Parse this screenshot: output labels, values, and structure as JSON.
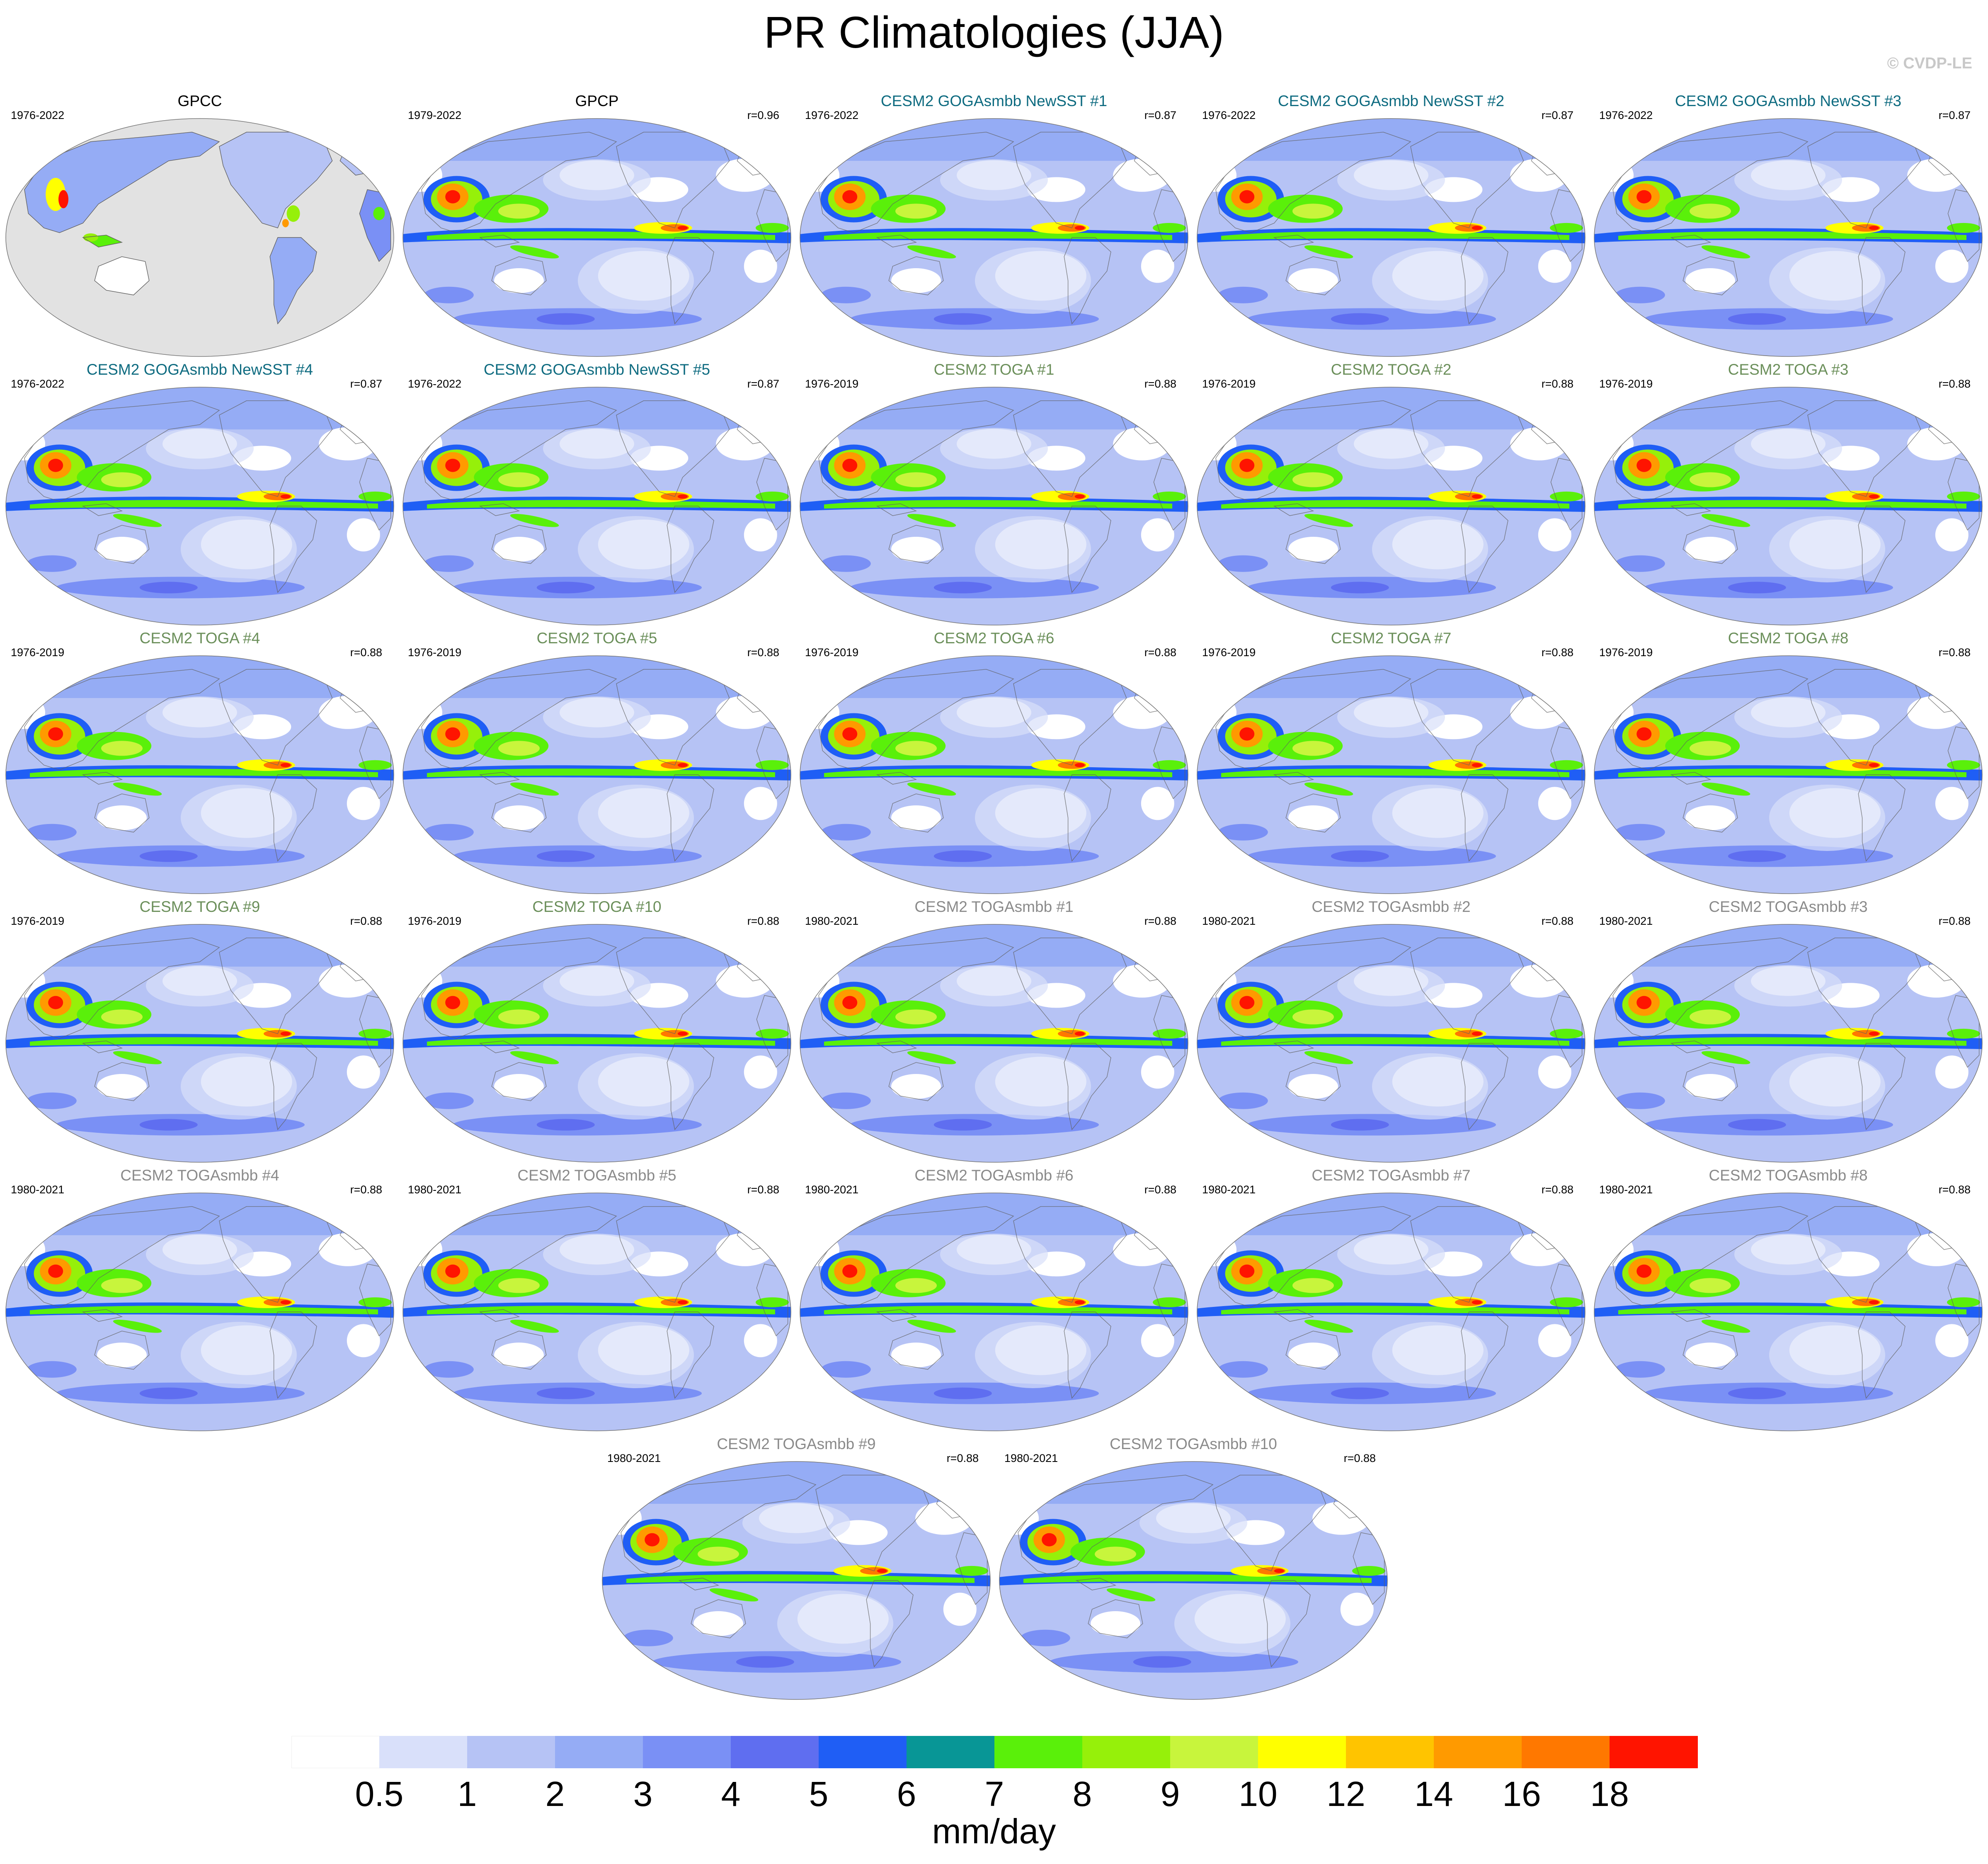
{
  "title": "PR Climatologies (JJA)",
  "watermark": "© CVDP-LE",
  "colors": {
    "obs_title": "#000000",
    "goga_title": "#0e6b80",
    "toga_title": "#6b8f5a",
    "togasmbb_title": "#8a8a8a",
    "land_gray": "#e2e2e2",
    "coast": "#606060"
  },
  "panels": [
    {
      "title": "GPCC",
      "period": "1976-2022",
      "r": "",
      "group": "obs",
      "kind": "land"
    },
    {
      "title": "GPCP",
      "period": "1979-2022",
      "r": "r=0.96",
      "group": "obs",
      "kind": "ocean"
    },
    {
      "title": "CESM2 GOGAsmbb NewSST #1",
      "period": "1976-2022",
      "r": "r=0.87",
      "group": "goga",
      "kind": "model"
    },
    {
      "title": "CESM2 GOGAsmbb NewSST #2",
      "period": "1976-2022",
      "r": "r=0.87",
      "group": "goga",
      "kind": "model"
    },
    {
      "title": "CESM2 GOGAsmbb NewSST #3",
      "period": "1976-2022",
      "r": "r=0.87",
      "group": "goga",
      "kind": "model"
    },
    {
      "title": "CESM2 GOGAsmbb NewSST #4",
      "period": "1976-2022",
      "r": "r=0.87",
      "group": "goga",
      "kind": "model"
    },
    {
      "title": "CESM2 GOGAsmbb NewSST #5",
      "period": "1976-2022",
      "r": "r=0.87",
      "group": "goga",
      "kind": "model"
    },
    {
      "title": "CESM2 TOGA #1",
      "period": "1976-2019",
      "r": "r=0.88",
      "group": "toga",
      "kind": "model"
    },
    {
      "title": "CESM2 TOGA #2",
      "period": "1976-2019",
      "r": "r=0.88",
      "group": "toga",
      "kind": "model"
    },
    {
      "title": "CESM2 TOGA #3",
      "period": "1976-2019",
      "r": "r=0.88",
      "group": "toga",
      "kind": "model"
    },
    {
      "title": "CESM2 TOGA #4",
      "period": "1976-2019",
      "r": "r=0.88",
      "group": "toga",
      "kind": "model"
    },
    {
      "title": "CESM2 TOGA #5",
      "period": "1976-2019",
      "r": "r=0.88",
      "group": "toga",
      "kind": "model"
    },
    {
      "title": "CESM2 TOGA #6",
      "period": "1976-2019",
      "r": "r=0.88",
      "group": "toga",
      "kind": "model"
    },
    {
      "title": "CESM2 TOGA #7",
      "period": "1976-2019",
      "r": "r=0.88",
      "group": "toga",
      "kind": "model"
    },
    {
      "title": "CESM2 TOGA #8",
      "period": "1976-2019",
      "r": "r=0.88",
      "group": "toga",
      "kind": "model"
    },
    {
      "title": "CESM2 TOGA #9",
      "period": "1976-2019",
      "r": "r=0.88",
      "group": "toga",
      "kind": "model"
    },
    {
      "title": "CESM2 TOGA #10",
      "period": "1976-2019",
      "r": "r=0.88",
      "group": "toga",
      "kind": "model"
    },
    {
      "title": "CESM2 TOGAsmbb #1",
      "period": "1980-2021",
      "r": "r=0.88",
      "group": "togasmbb",
      "kind": "model"
    },
    {
      "title": "CESM2 TOGAsmbb #2",
      "period": "1980-2021",
      "r": "r=0.88",
      "group": "togasmbb",
      "kind": "model"
    },
    {
      "title": "CESM2 TOGAsmbb #3",
      "period": "1980-2021",
      "r": "r=0.88",
      "group": "togasmbb",
      "kind": "model"
    },
    {
      "title": "CESM2 TOGAsmbb #4",
      "period": "1980-2021",
      "r": "r=0.88",
      "group": "togasmbb",
      "kind": "model"
    },
    {
      "title": "CESM2 TOGAsmbb #5",
      "period": "1980-2021",
      "r": "r=0.88",
      "group": "togasmbb",
      "kind": "model"
    },
    {
      "title": "CESM2 TOGAsmbb #6",
      "period": "1980-2021",
      "r": "r=0.88",
      "group": "togasmbb",
      "kind": "model"
    },
    {
      "title": "CESM2 TOGAsmbb #7",
      "period": "1980-2021",
      "r": "r=0.88",
      "group": "togasmbb",
      "kind": "model"
    },
    {
      "title": "CESM2 TOGAsmbb #8",
      "period": "1980-2021",
      "r": "r=0.88",
      "group": "togasmbb",
      "kind": "model"
    },
    {
      "title": "CESM2 TOGAsmbb #9",
      "period": "1980-2021",
      "r": "r=0.88",
      "group": "togasmbb",
      "kind": "model"
    },
    {
      "title": "CESM2 TOGAsmbb #10",
      "period": "1980-2021",
      "r": "r=0.88",
      "group": "togasmbb",
      "kind": "model"
    }
  ],
  "colorbar": {
    "units": "mm/day",
    "levels": [
      "0.5",
      "1",
      "2",
      "3",
      "4",
      "5",
      "6",
      "7",
      "8",
      "9",
      "10",
      "12",
      "14",
      "16",
      "18"
    ],
    "colors": [
      "#ffffff",
      "#d9e0fa",
      "#b6c3f5",
      "#95acf5",
      "#7a90f5",
      "#5f6ef0",
      "#1f5ef5",
      "#089696",
      "#5af00a",
      "#96f00a",
      "#c8f53c",
      "#ffff00",
      "#ffc400",
      "#ff9a00",
      "#ff7800",
      "#ff1400"
    ]
  }
}
